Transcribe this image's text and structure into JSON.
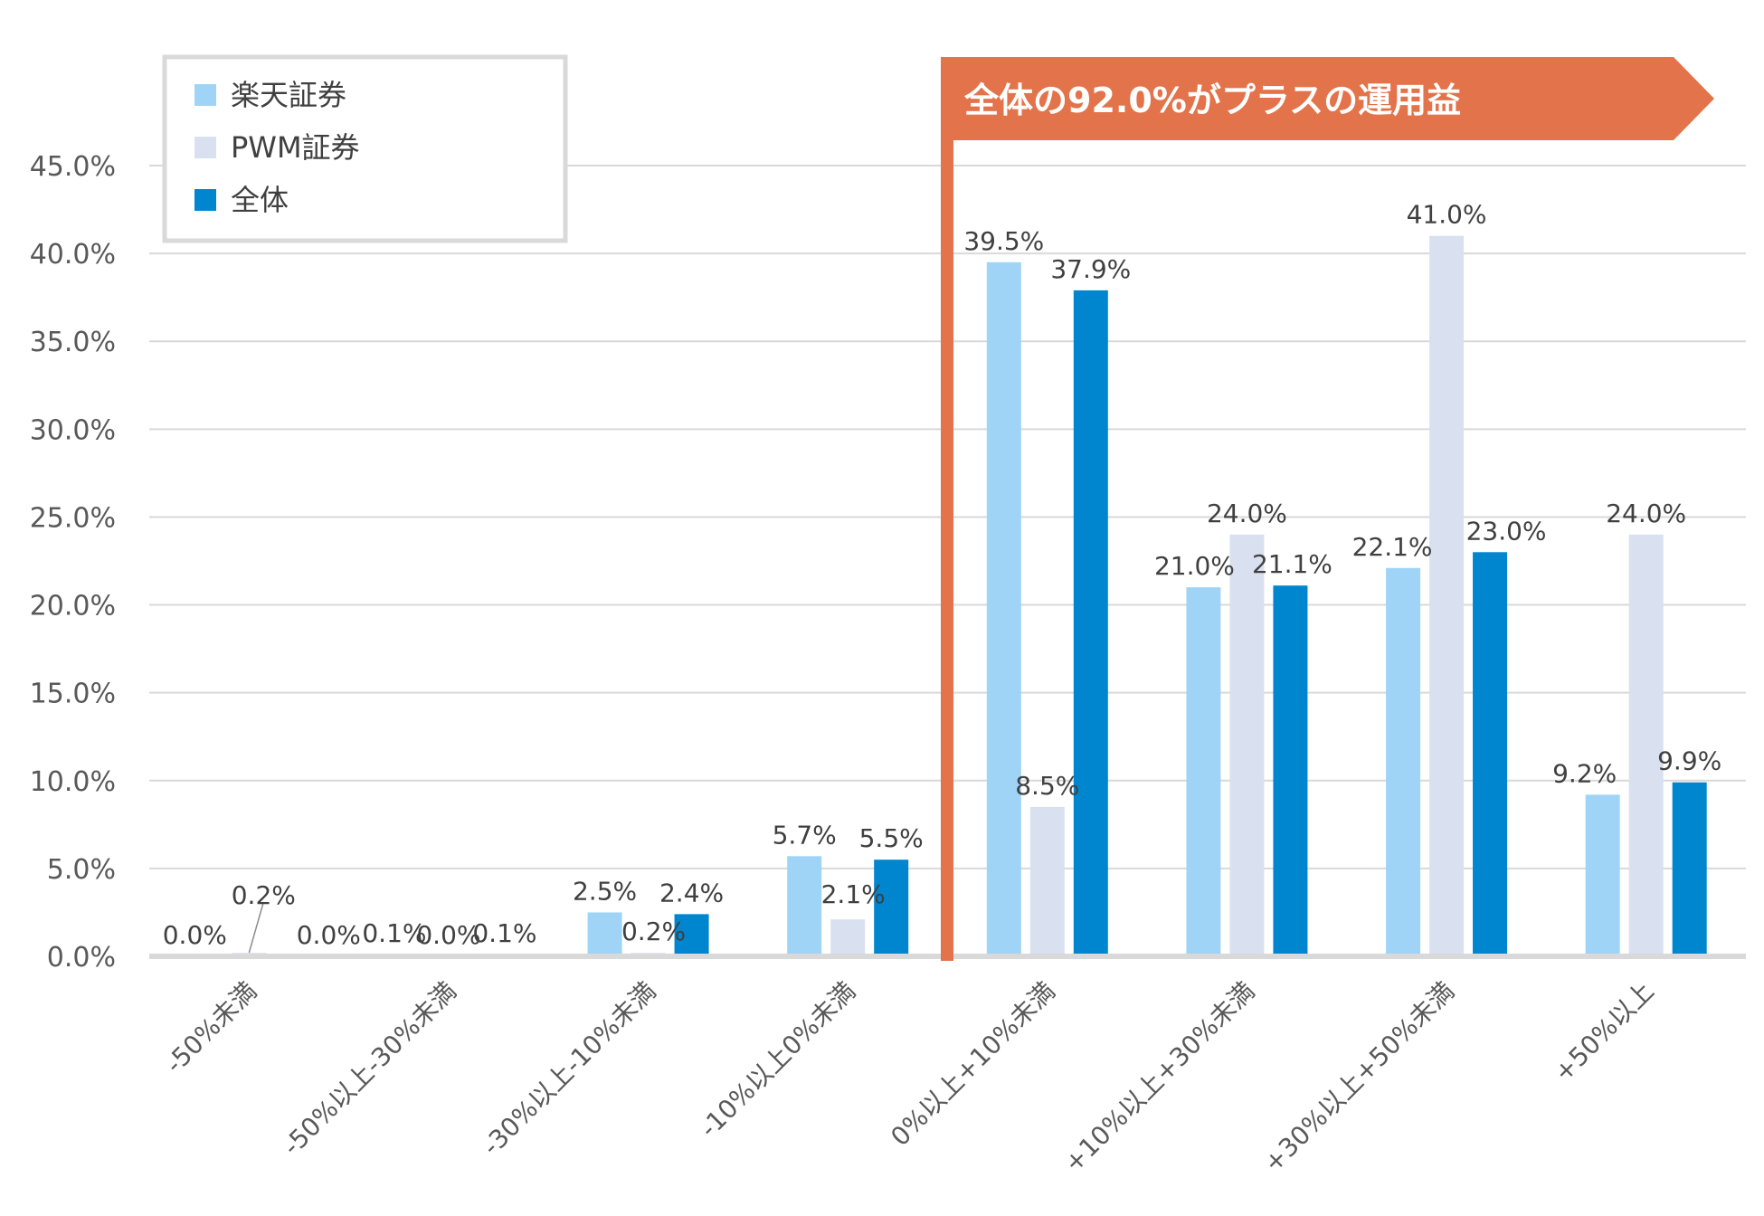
{
  "chart_data": {
    "type": "bar",
    "categories": [
      "-50%未満",
      "-50%以上-30%未満",
      "-30%以上-10%未満",
      "-10%以上0%未満",
      "0%以上+10%未満",
      "+10%以上+30%未満",
      "+30%以上+50%未満",
      "+50%以上"
    ],
    "series": [
      {
        "name": "楽天証券",
        "values": [
          0.0,
          0.1,
          2.5,
          5.7,
          39.5,
          21.0,
          22.1,
          9.2
        ],
        "labels": [
          "0.0%",
          "0.1%",
          "2.5%",
          "5.7%",
          "39.5%",
          "21.0%",
          "22.1%",
          "9.2%"
        ]
      },
      {
        "name": "PWM証券",
        "values": [
          0.2,
          0.0,
          0.2,
          2.1,
          8.5,
          24.0,
          41.0,
          24.0
        ],
        "labels": [
          "0.2%",
          "0.0%",
          "0.2%",
          "2.1%",
          "8.5%",
          "24.0%",
          "41.0%",
          "24.0%"
        ]
      },
      {
        "name": "全体",
        "values": [
          0.0,
          0.1,
          2.4,
          5.5,
          37.9,
          21.1,
          23.0,
          9.9
        ],
        "labels": [
          "0.0%",
          "0.1%",
          "2.4%",
          "5.5%",
          "37.9%",
          "21.1%",
          "23.0%",
          "9.9%"
        ]
      }
    ],
    "yticks": [
      "0.0%",
      "5.0%",
      "10.0%",
      "15.0%",
      "20.0%",
      "25.0%",
      "30.0%",
      "35.0%",
      "40.0%",
      "45.0%"
    ],
    "ylim": [
      0,
      45
    ],
    "title": "",
    "xlabel": "",
    "ylabel": "",
    "grid": true,
    "legend_position": "top-left",
    "annotation": "全体の92.0%がプラスの運用益"
  },
  "colors": {
    "series": [
      "#9fd4f7",
      "#d9e0f0",
      "#0085cf"
    ],
    "callout": "#e3734a",
    "grid": "#d9d9d9",
    "axis": "#d9d9d9",
    "legend_border": "#d9d9d9"
  }
}
